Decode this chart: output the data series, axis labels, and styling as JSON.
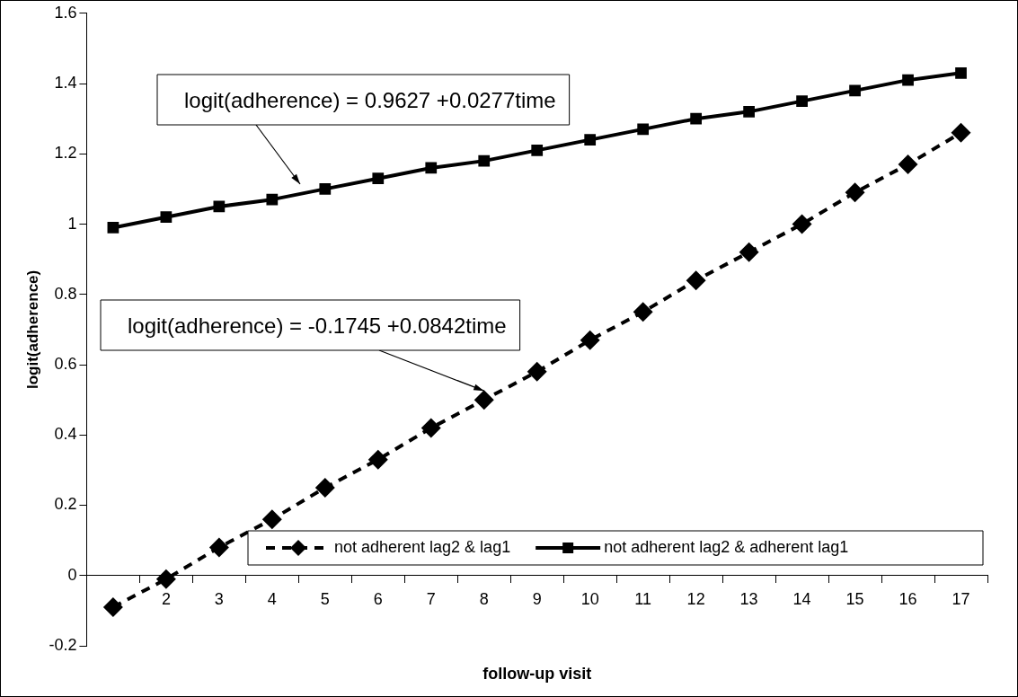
{
  "chart_data": {
    "type": "line",
    "xlabel": "follow-up visit",
    "ylabel": "logit(adherence)",
    "categories": [
      null,
      "2",
      "3",
      "4",
      "5",
      "6",
      "7",
      "8",
      "9",
      "10",
      "11",
      "12",
      "13",
      "14",
      "15",
      "16",
      "17"
    ],
    "series": [
      {
        "name": "not adherent lag2 & lag1",
        "color": "#000000",
        "marker": "diamond",
        "line_style": "dashed",
        "values": [
          -0.09,
          -0.01,
          0.08,
          0.16,
          0.25,
          0.33,
          0.42,
          0.5,
          0.58,
          0.67,
          0.75,
          0.84,
          0.92,
          1.0,
          1.09,
          1.17,
          1.26
        ]
      },
      {
        "name": "not adherent lag2 & adherent lag1",
        "color": "#000000",
        "marker": "square",
        "line_style": "solid",
        "values": [
          0.99,
          1.02,
          1.05,
          1.07,
          1.1,
          1.13,
          1.16,
          1.18,
          1.21,
          1.24,
          1.27,
          1.3,
          1.32,
          1.35,
          1.38,
          1.41,
          1.43
        ]
      }
    ],
    "ylim": [
      -0.2,
      1.6
    ],
    "yticks": [
      -0.2,
      0,
      0.2,
      0.4,
      0.6,
      0.8,
      1,
      1.2,
      1.4,
      1.6
    ],
    "legend": "bottom",
    "annotations": [
      "logit(adherence) = 0.9627 +0.0277time",
      {
        "text": "logit(adherence) = -0.1745 +0.0842time",
        "x": "8",
        "y": 0.5
      }
    ]
  }
}
